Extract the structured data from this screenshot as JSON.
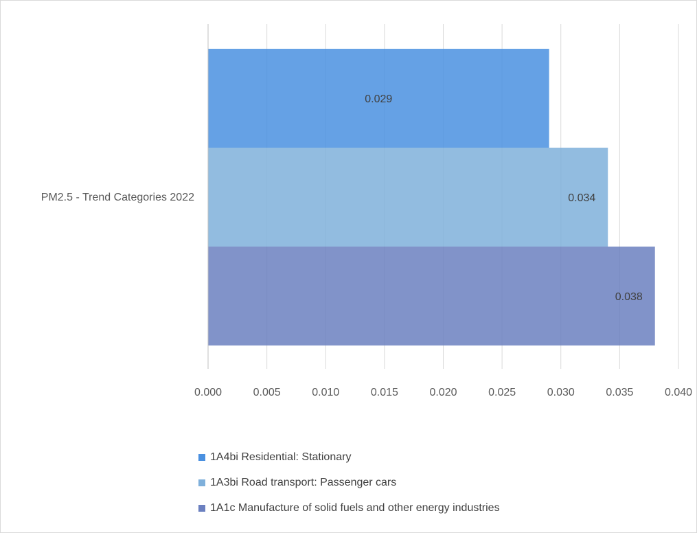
{
  "chart_data": {
    "type": "bar",
    "orientation": "horizontal",
    "categories": [
      "PM2.5 - Trend Categories  2022"
    ],
    "series": [
      {
        "name": "1A4bi Residential: Stationary",
        "values": [
          0.029
        ],
        "label": "0.029",
        "color": "#4a90e0"
      },
      {
        "name": "1A3bi Road transport: Passenger cars",
        "values": [
          0.034
        ],
        "label": "0.034",
        "color": "#7fb0db"
      },
      {
        "name": "1A1c Manufacture of solid fuels and other energy industries",
        "values": [
          0.038
        ],
        "label": "0.038",
        "color": "#6b80c0"
      }
    ],
    "xlim": [
      0,
      0.04
    ],
    "xticks": [
      "0.000",
      "0.005",
      "0.010",
      "0.015",
      "0.020",
      "0.025",
      "0.030",
      "0.035",
      "0.040"
    ],
    "grid": "vertical",
    "legend_position": "bottom"
  }
}
